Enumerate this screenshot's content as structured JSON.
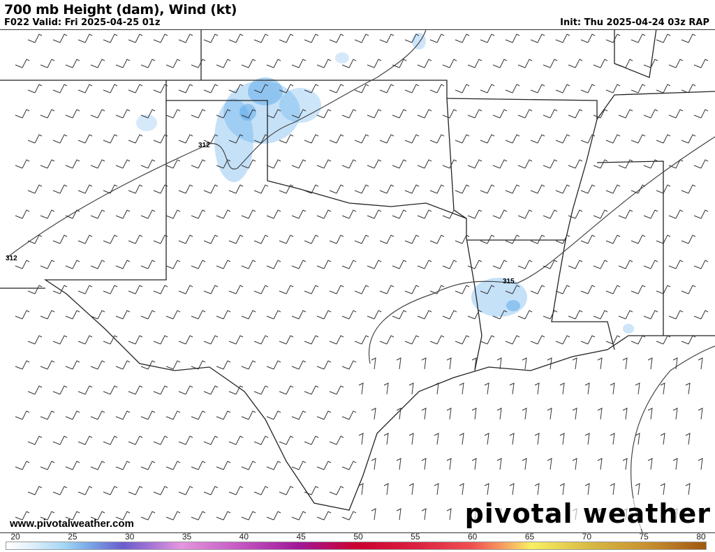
{
  "header": {
    "title": "700 mb Height (dam), Wind (kt)",
    "valid": "F022 Valid: Fri 2025-04-25 01z",
    "init": "Init: Thu 2025-04-24 03z RAP"
  },
  "map": {
    "contour_labels": [
      "312",
      "312",
      "315"
    ],
    "precip_color": "#5aa8ea"
  },
  "footer": {
    "website": "www.pivotalweather.com",
    "logo": "pivotal weather"
  },
  "colorbar": {
    "ticks": [
      "20",
      "25",
      "30",
      "35",
      "40",
      "45",
      "50",
      "55",
      "60",
      "65",
      "70",
      "75",
      "80"
    ],
    "min": 20,
    "max": 80,
    "stops": [
      {
        "v": 20,
        "c": "#ffffff"
      },
      {
        "v": 22,
        "c": "#e4f1fb"
      },
      {
        "v": 25,
        "c": "#a2d6f6"
      },
      {
        "v": 27,
        "c": "#7aaae6"
      },
      {
        "v": 30,
        "c": "#6a5ccf"
      },
      {
        "v": 32,
        "c": "#9a70d4"
      },
      {
        "v": 35,
        "c": "#e496de"
      },
      {
        "v": 40,
        "c": "#c458c2"
      },
      {
        "v": 45,
        "c": "#a0189a"
      },
      {
        "v": 50,
        "c": "#cc0030"
      },
      {
        "v": 55,
        "c": "#da2040"
      },
      {
        "v": 60,
        "c": "#f05050"
      },
      {
        "v": 63,
        "c": "#f8aa62"
      },
      {
        "v": 65,
        "c": "#f8f062"
      },
      {
        "v": 70,
        "c": "#d8ba42"
      },
      {
        "v": 75,
        "c": "#c89030"
      },
      {
        "v": 80,
        "c": "#a05810"
      }
    ]
  }
}
